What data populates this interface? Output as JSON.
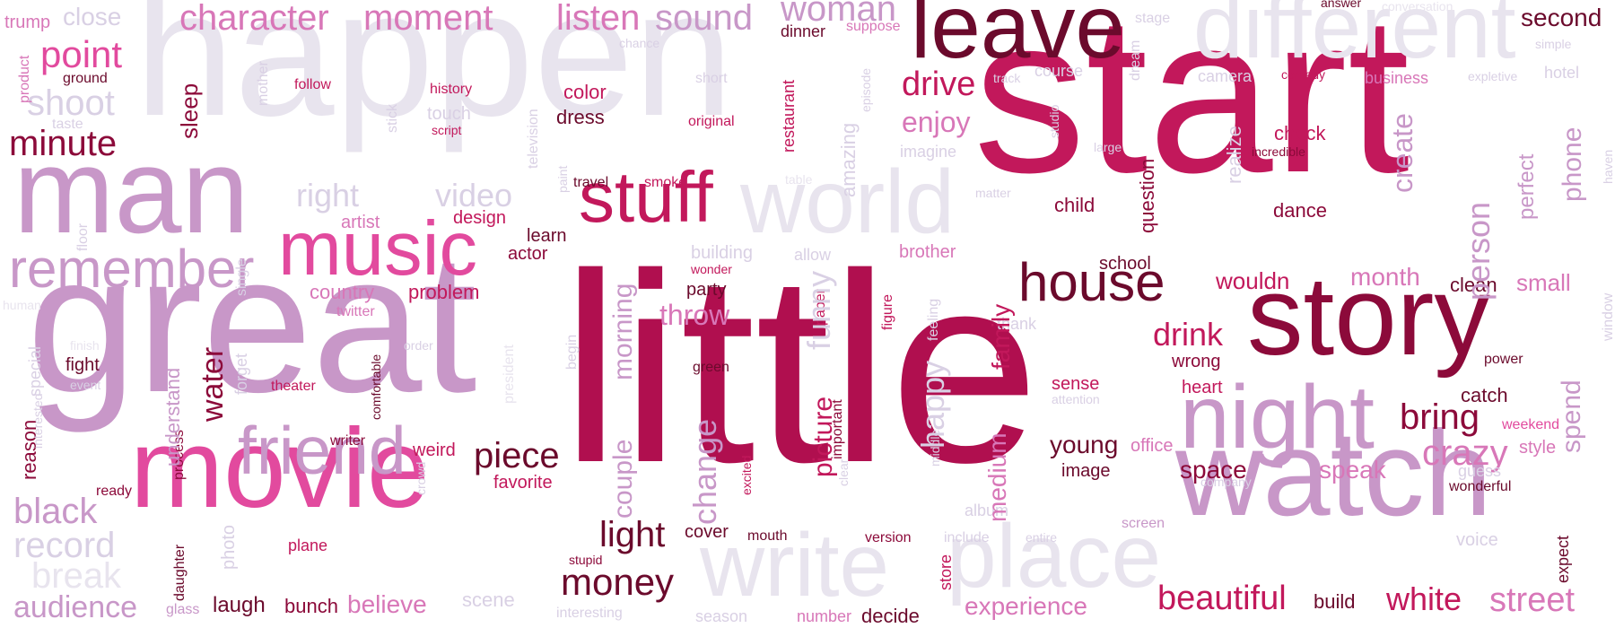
{
  "palette": {
    "pale": "#e8e4ee",
    "faint": "#d9d0e4",
    "lavender": "#c897c8",
    "light_pink": "#d877b8",
    "pink": "#e24a9e",
    "rose": "#d6286f",
    "crimson": "#c2185b",
    "berry": "#b00f4f",
    "maroon": "#8c0a3a",
    "dark": "#6b0a2c"
  },
  "words": [
    {
      "text": "start",
      "color": "crimson"
    },
    {
      "text": "little",
      "color": "berry"
    },
    {
      "text": "happen",
      "color": "pale"
    },
    {
      "text": "great",
      "color": "lavender"
    },
    {
      "text": "man",
      "color": "lavender"
    },
    {
      "text": "movie",
      "color": "pink"
    },
    {
      "text": "watch",
      "color": "lavender"
    },
    {
      "text": "story",
      "color": "maroon"
    },
    {
      "text": "leave",
      "color": "dark"
    },
    {
      "text": "different",
      "color": "pale"
    },
    {
      "text": "night",
      "color": "lavender"
    },
    {
      "text": "write",
      "color": "pale"
    },
    {
      "text": "place",
      "color": "pale"
    },
    {
      "text": "world",
      "color": "pale"
    },
    {
      "text": "music",
      "color": "pink"
    },
    {
      "text": "stuff",
      "color": "crimson"
    },
    {
      "text": "friend",
      "color": "lavender"
    },
    {
      "text": "remember",
      "color": "lavender"
    },
    {
      "text": "house",
      "color": "dark"
    },
    {
      "text": "character",
      "color": "light_pink"
    },
    {
      "text": "moment",
      "color": "light_pink"
    },
    {
      "text": "sound",
      "color": "lavender"
    },
    {
      "text": "listen",
      "color": "light_pink"
    },
    {
      "text": "woman",
      "color": "lavender"
    },
    {
      "text": "point",
      "color": "pink"
    },
    {
      "text": "shoot",
      "color": "faint"
    },
    {
      "text": "minute",
      "color": "maroon"
    },
    {
      "text": "piece",
      "color": "dark"
    },
    {
      "text": "money",
      "color": "dark"
    },
    {
      "text": "light",
      "color": "dark"
    },
    {
      "text": "bring",
      "color": "maroon"
    },
    {
      "text": "crazy",
      "color": "light_pink"
    },
    {
      "text": "beautiful",
      "color": "crimson"
    },
    {
      "text": "white",
      "color": "crimson"
    },
    {
      "text": "street",
      "color": "light_pink"
    },
    {
      "text": "second",
      "color": "dark"
    },
    {
      "text": "drive",
      "color": "crimson"
    },
    {
      "text": "enjoy",
      "color": "light_pink"
    },
    {
      "text": "drink",
      "color": "crimson"
    },
    {
      "text": "black",
      "color": "lavender"
    },
    {
      "text": "record",
      "color": "faint"
    },
    {
      "text": "audience",
      "color": "lavender"
    },
    {
      "text": "experience",
      "color": "light_pink"
    },
    {
      "text": "month",
      "color": "light_pink"
    },
    {
      "text": "speak",
      "color": "light_pink"
    },
    {
      "text": "space",
      "color": "maroon"
    },
    {
      "text": "young",
      "color": "dark"
    },
    {
      "text": "throw",
      "color": "light_pink"
    },
    {
      "text": "right",
      "color": "faint"
    },
    {
      "text": "video",
      "color": "faint"
    },
    {
      "text": "country",
      "color": "light_pink"
    },
    {
      "text": "close",
      "color": "faint"
    },
    {
      "text": "sleep",
      "color": "maroon"
    },
    {
      "text": "laugh",
      "color": "dark"
    },
    {
      "text": "believe",
      "color": "light_pink"
    },
    {
      "text": "bunch",
      "color": "maroon"
    },
    {
      "text": "wouldn",
      "color": "crimson"
    },
    {
      "text": "small",
      "color": "light_pink"
    },
    {
      "text": "clean",
      "color": "dark"
    },
    {
      "text": "dance",
      "color": "maroon"
    },
    {
      "text": "check",
      "color": "crimson"
    },
    {
      "text": "child",
      "color": "maroon"
    },
    {
      "text": "school",
      "color": "dark"
    },
    {
      "text": "dress",
      "color": "dark"
    },
    {
      "text": "color",
      "color": "crimson"
    },
    {
      "text": "design",
      "color": "crimson"
    },
    {
      "text": "learn",
      "color": "dark"
    },
    {
      "text": "actor",
      "color": "maroon"
    },
    {
      "text": "problem",
      "color": "crimson"
    },
    {
      "text": "party",
      "color": "dark"
    },
    {
      "text": "fight",
      "color": "dark"
    },
    {
      "text": "weird",
      "color": "crimson"
    },
    {
      "text": "favorite",
      "color": "crimson"
    },
    {
      "text": "water",
      "color": "maroon"
    },
    {
      "text": "cover",
      "color": "dark"
    },
    {
      "text": "build",
      "color": "dark"
    },
    {
      "text": "decide",
      "color": "dark"
    },
    {
      "text": "number",
      "color": "light_pink"
    },
    {
      "text": "business",
      "color": "light_pink"
    },
    {
      "text": "brother",
      "color": "light_pink"
    },
    {
      "text": "building",
      "color": "faint"
    },
    {
      "text": "album",
      "color": "faint"
    },
    {
      "text": "image",
      "color": "dark"
    },
    {
      "text": "sense",
      "color": "crimson"
    },
    {
      "text": "heart",
      "color": "crimson"
    },
    {
      "text": "wrong",
      "color": "maroon"
    },
    {
      "text": "catch",
      "color": "dark"
    },
    {
      "text": "power",
      "color": "dark"
    },
    {
      "text": "style",
      "color": "light_pink"
    },
    {
      "text": "weekend",
      "color": "pink"
    },
    {
      "text": "wonderful",
      "color": "dark"
    },
    {
      "text": "office",
      "color": "light_pink"
    },
    {
      "text": "artist",
      "color": "light_pink"
    },
    {
      "text": "twitter",
      "color": "light_pink"
    },
    {
      "text": "theater",
      "color": "crimson"
    },
    {
      "text": "writer",
      "color": "maroon"
    },
    {
      "text": "ready",
      "color": "maroon"
    },
    {
      "text": "travel",
      "color": "dark"
    },
    {
      "text": "smoke",
      "color": "crimson"
    },
    {
      "text": "green",
      "color": "dark"
    },
    {
      "text": "wonder",
      "color": "crimson"
    },
    {
      "text": "paper",
      "color": "crimson"
    },
    {
      "text": "figure",
      "color": "crimson"
    },
    {
      "text": "original",
      "color": "crimson"
    },
    {
      "text": "history",
      "color": "crimson"
    },
    {
      "text": "follow",
      "color": "crimson"
    },
    {
      "text": "script",
      "color": "crimson"
    },
    {
      "text": "touch",
      "color": "faint"
    },
    {
      "text": "short",
      "color": "faint"
    },
    {
      "text": "chance",
      "color": "faint"
    },
    {
      "text": "suppose",
      "color": "light_pink"
    },
    {
      "text": "dinner",
      "color": "dark"
    },
    {
      "text": "answer",
      "color": "dark"
    },
    {
      "text": "conversation",
      "color": "pale"
    },
    {
      "text": "stage",
      "color": "faint"
    },
    {
      "text": "camera",
      "color": "faint"
    },
    {
      "text": "comedy",
      "color": "crimson"
    },
    {
      "text": "course",
      "color": "faint"
    },
    {
      "text": "track",
      "color": "faint"
    },
    {
      "text": "studio",
      "color": "faint"
    },
    {
      "text": "large",
      "color": "faint"
    },
    {
      "text": "incredible",
      "color": "maroon"
    },
    {
      "text": "imagine",
      "color": "faint"
    },
    {
      "text": "matter",
      "color": "faint"
    },
    {
      "text": "table",
      "color": "pale"
    },
    {
      "text": "simple",
      "color": "faint"
    },
    {
      "text": "hotel",
      "color": "faint"
    },
    {
      "text": "expletive",
      "color": "faint"
    },
    {
      "text": "product",
      "color": "light_pink"
    },
    {
      "text": "trump",
      "color": "light_pink"
    },
    {
      "text": "ground",
      "color": "dark"
    },
    {
      "text": "taste",
      "color": "faint"
    },
    {
      "text": "mother",
      "color": "faint"
    },
    {
      "text": "human",
      "color": "pale"
    },
    {
      "text": "finish",
      "color": "pale"
    },
    {
      "text": "event",
      "color": "faint"
    },
    {
      "text": "order",
      "color": "faint"
    },
    {
      "text": "forget",
      "color": "faint"
    },
    {
      "text": "comfortable",
      "color": "dark"
    },
    {
      "text": "president",
      "color": "pale"
    },
    {
      "text": "special",
      "color": "faint"
    },
    {
      "text": "reason",
      "color": "maroon"
    },
    {
      "text": "interested",
      "color": "faint"
    },
    {
      "text": "process",
      "color": "maroon"
    },
    {
      "text": "understand",
      "color": "lavender"
    },
    {
      "text": "begin",
      "color": "faint"
    },
    {
      "text": "crowd",
      "color": "faint"
    },
    {
      "text": "break",
      "color": "pale"
    },
    {
      "text": "photo",
      "color": "faint"
    },
    {
      "text": "daughter",
      "color": "dark"
    },
    {
      "text": "plane",
      "color": "crimson"
    },
    {
      "text": "glass",
      "color": "lavender"
    },
    {
      "text": "stupid",
      "color": "maroon"
    },
    {
      "text": "interesting",
      "color": "faint"
    },
    {
      "text": "scene",
      "color": "faint"
    },
    {
      "text": "season",
      "color": "faint"
    },
    {
      "text": "mouth",
      "color": "dark"
    },
    {
      "text": "version",
      "color": "maroon"
    },
    {
      "text": "include",
      "color": "faint"
    },
    {
      "text": "entire",
      "color": "faint"
    },
    {
      "text": "screen",
      "color": "lavender"
    },
    {
      "text": "store",
      "color": "crimson"
    },
    {
      "text": "company",
      "color": "faint"
    },
    {
      "text": "attention",
      "color": "faint"
    },
    {
      "text": "thank",
      "color": "faint"
    },
    {
      "text": "feeling",
      "color": "faint"
    },
    {
      "text": "allow",
      "color": "faint"
    },
    {
      "text": "guess",
      "color": "faint"
    },
    {
      "text": "voice",
      "color": "faint"
    },
    {
      "text": "question",
      "color": "maroon"
    },
    {
      "text": "realize",
      "color": "faint"
    },
    {
      "text": "create",
      "color": "lavender"
    },
    {
      "text": "person",
      "color": "lavender"
    },
    {
      "text": "perfect",
      "color": "lavender"
    },
    {
      "text": "phone",
      "color": "lavender"
    },
    {
      "text": "haven",
      "color": "faint"
    },
    {
      "text": "window",
      "color": "faint"
    },
    {
      "text": "spend",
      "color": "lavender"
    },
    {
      "text": "expect",
      "color": "dark"
    },
    {
      "text": "television",
      "color": "faint"
    },
    {
      "text": "stick",
      "color": "faint"
    },
    {
      "text": "restaurant",
      "color": "crimson"
    },
    {
      "text": "amazing",
      "color": "faint"
    },
    {
      "text": "episode",
      "color": "faint"
    },
    {
      "text": "dream",
      "color": "faint"
    },
    {
      "text": "single",
      "color": "faint"
    },
    {
      "text": "floor",
      "color": "faint"
    },
    {
      "text": "paint",
      "color": "faint"
    },
    {
      "text": "couple",
      "color": "lavender"
    },
    {
      "text": "morning",
      "color": "lavender"
    },
    {
      "text": "change",
      "color": "lavender"
    },
    {
      "text": "funny",
      "color": "faint"
    },
    {
      "text": "picture",
      "color": "crimson"
    },
    {
      "text": "important",
      "color": "maroon"
    },
    {
      "text": "excited",
      "color": "crimson"
    },
    {
      "text": "family",
      "color": "crimson"
    },
    {
      "text": "medium",
      "color": "light_pink"
    },
    {
      "text": "happy",
      "color": "faint"
    },
    {
      "text": "middle",
      "color": "faint"
    },
    {
      "text": "clear",
      "color": "faint"
    }
  ]
}
